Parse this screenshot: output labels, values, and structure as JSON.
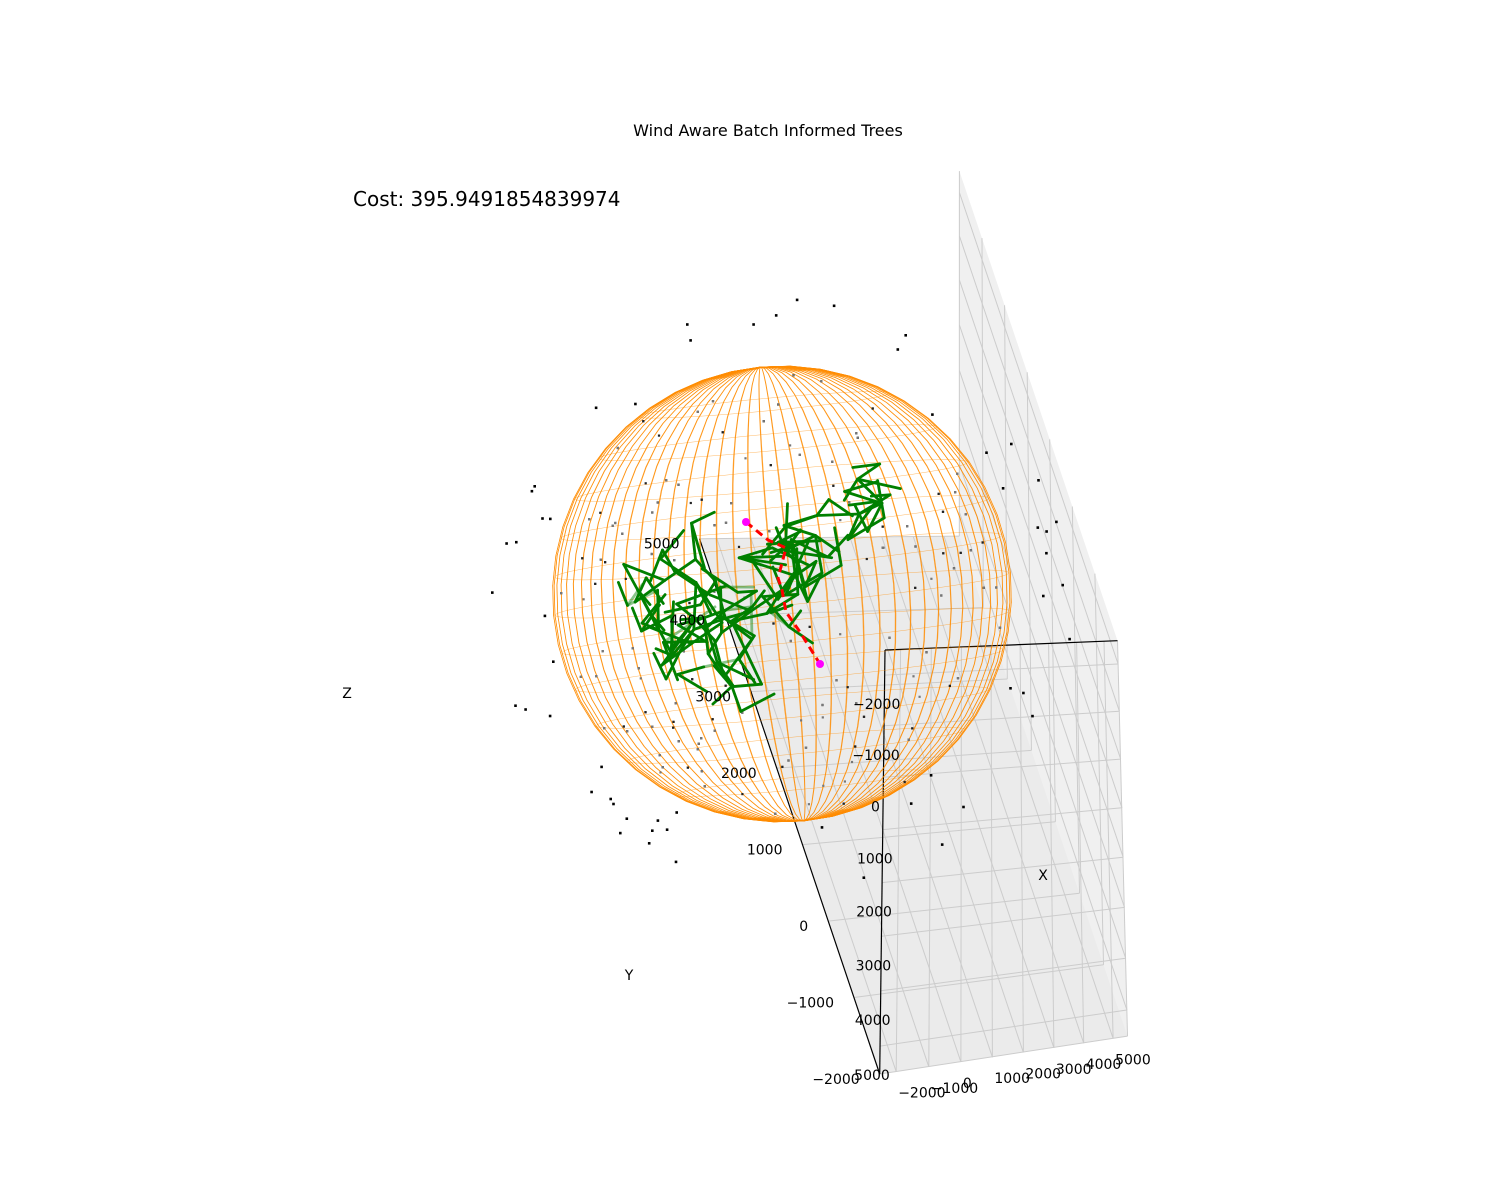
{
  "chart_data": {
    "type": "scatter",
    "projection": "3d",
    "title": "Wind Aware Batch Informed Trees",
    "annotation": "Cost: 395.9491854839974",
    "xlabel": "X",
    "ylabel": "Y",
    "zlabel": "Z",
    "xlim": [
      -2500,
      5500
    ],
    "ylim": [
      -2500,
      5500
    ],
    "zlim": [
      -2000,
      5000
    ],
    "x_ticks": [
      "−2000",
      "−1000",
      "0",
      "1000",
      "2000",
      "3000",
      "4000",
      "5000"
    ],
    "y_ticks": [
      "−2000",
      "−1000",
      "0",
      "1000",
      "2000",
      "3000",
      "4000",
      "5000"
    ],
    "z_ticks": [
      "−2000",
      "−1000",
      "0",
      "1000",
      "2000",
      "3000",
      "4000",
      "5000"
    ],
    "grid": true,
    "colors": {
      "ellipsoid": "#ff8c00",
      "tree": "#008000",
      "path": "#ff0000",
      "start_goal": "#ff00ff",
      "samples": "#000000",
      "pane": "#f2f2f2",
      "grid": "#cccccc"
    },
    "series": [
      {
        "style": "informed-set-ellipsoid-wireframe"
      },
      {
        "style": "search-tree-edges"
      },
      {
        "style": "solution-path-dashed"
      },
      {
        "style": "sampled-states"
      }
    ]
  }
}
